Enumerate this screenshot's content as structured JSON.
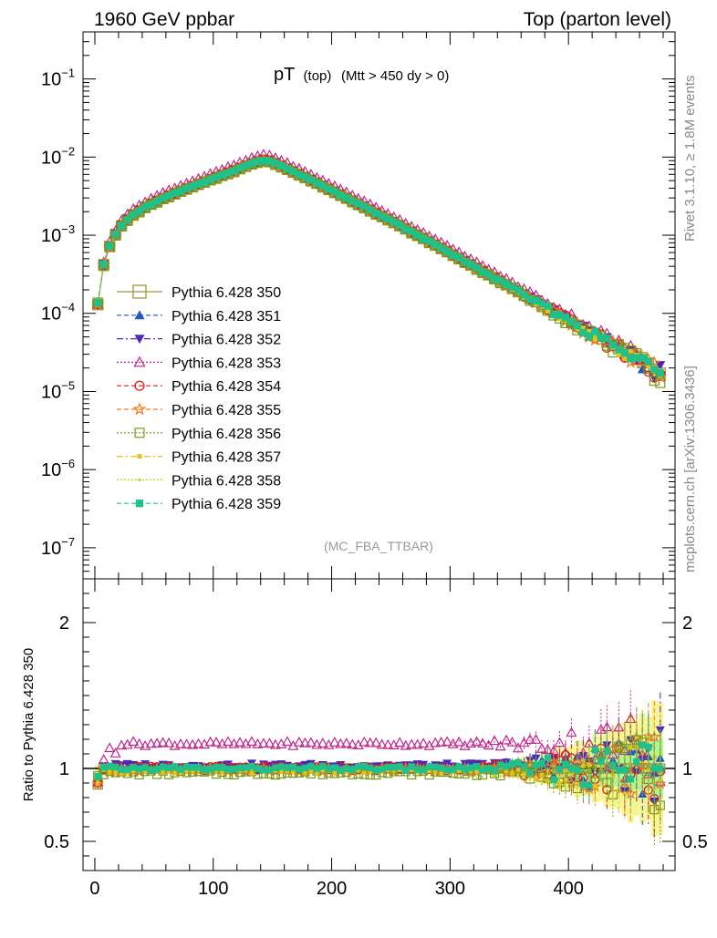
{
  "header": {
    "left": "1960 GeV ppbar",
    "right": "Top (parton level)"
  },
  "plot_title": {
    "main": "pT",
    "sub1": "(top)",
    "sub2": "(Mtt > 450 dy > 0)"
  },
  "watermark": "(MC_FBA_TTBAR)",
  "side_text": {
    "rivet": "Rivet 3.1.10, ≥ 1.8M events",
    "mcplots": "mcplots.cern.ch [arXiv:1306.3436]"
  },
  "ratio_ylabel": "Ratio to Pythia 6.428 350",
  "chart_data": [
    {
      "type": "scatter",
      "yscale": "log",
      "xlim": [
        -10,
        490
      ],
      "ylim": [
        4e-08,
        0.4
      ],
      "y_tick_labels": [
        "10^-7",
        "10^-6",
        "10^-5",
        "10^-4",
        "10^-3",
        "10^-2",
        "10^-1"
      ],
      "legend_position": "center-left",
      "series": [
        {
          "name": "Pythia 6.428 350",
          "color": "#9a9a3a",
          "marker": "open-square",
          "line": "solid",
          "offset": 1.0
        },
        {
          "name": "Pythia 6.428 351",
          "color": "#1f58c0",
          "marker": "filled-triangle-up",
          "line": "dashed",
          "offset": 1.0
        },
        {
          "name": "Pythia 6.428 352",
          "color": "#4a2ab8",
          "marker": "filled-triangle-down",
          "line": "dashdot",
          "offset": 1.02
        },
        {
          "name": "Pythia 6.428 353",
          "color": "#c0288c",
          "marker": "open-triangle-up",
          "line": "dotted",
          "offset": 1.17
        },
        {
          "name": "Pythia 6.428 354",
          "color": "#e01c1c",
          "marker": "open-circle",
          "line": "dashed",
          "offset": 1.0
        },
        {
          "name": "Pythia 6.428 355",
          "color": "#f07a1e",
          "marker": "open-star",
          "line": "dashed",
          "offset": 0.99
        },
        {
          "name": "Pythia 6.428 356",
          "color": "#7a9a10",
          "marker": "open-square-small",
          "line": "dotted",
          "offset": 0.97
        },
        {
          "name": "Pythia 6.428 357",
          "color": "#e6c21a",
          "marker": "filled-small",
          "line": "dashdot",
          "offset": 0.98
        },
        {
          "name": "Pythia 6.428 358",
          "color": "#c8d21a",
          "marker": "dot",
          "line": "dotted",
          "offset": 0.99
        },
        {
          "name": "Pythia 6.428 359",
          "color": "#1fc08a",
          "marker": "filled-square",
          "line": "dashed",
          "offset": 1.0
        }
      ],
      "x": [
        2.5,
        7.5,
        12.5,
        17.5,
        22.5,
        27.5,
        32.5,
        37.5,
        42.5,
        47.5,
        52.5,
        57.5,
        62.5,
        67.5,
        72.5,
        77.5,
        82.5,
        87.5,
        92.5,
        97.5,
        102.5,
        107.5,
        112.5,
        117.5,
        122.5,
        127.5,
        132.5,
        137.5,
        142.5,
        147.5,
        152.5,
        157.5,
        162.5,
        167.5,
        172.5,
        177.5,
        182.5,
        187.5,
        192.5,
        197.5,
        202.5,
        207.5,
        212.5,
        217.5,
        222.5,
        227.5,
        232.5,
        237.5,
        242.5,
        247.5,
        252.5,
        257.5,
        262.5,
        267.5,
        272.5,
        277.5,
        282.5,
        287.5,
        292.5,
        297.5,
        302.5,
        307.5,
        312.5,
        317.5,
        322.5,
        327.5,
        332.5,
        337.5,
        342.5,
        347.5,
        352.5,
        357.5,
        362.5,
        367.5,
        372.5,
        377.5,
        382.5,
        387.5,
        392.5,
        397.5,
        402.5,
        407.5,
        412.5,
        417.5,
        422.5,
        427.5,
        432.5,
        437.5,
        442.5,
        447.5,
        452.5,
        457.5,
        462.5,
        467.5,
        472.5,
        477.5
      ],
      "reference_values": [
        0.000145,
        0.00042,
        0.00072,
        0.00102,
        0.00132,
        0.00158,
        0.00182,
        0.00205,
        0.00227,
        0.0025,
        0.00272,
        0.00295,
        0.00318,
        0.00342,
        0.00367,
        0.00393,
        0.0042,
        0.00449,
        0.0048,
        0.00513,
        0.00548,
        0.00586,
        0.00627,
        0.0067,
        0.00717,
        0.00767,
        0.0082,
        0.00877,
        0.0091,
        0.0089,
        0.0083,
        0.00765,
        0.00705,
        0.0065,
        0.00598,
        0.0055,
        0.00505,
        0.00463,
        0.00425,
        0.0039,
        0.00358,
        0.00328,
        0.003,
        0.00275,
        0.00251,
        0.0023,
        0.0021,
        0.00192,
        0.00175,
        0.0016,
        0.00146,
        0.00133,
        0.00121,
        0.0011,
        0.001,
        0.00091,
        0.00083,
        0.00075,
        0.00068,
        0.00062,
        0.00056,
        0.00051,
        0.00046,
        0.000418,
        0.000379,
        0.000343,
        0.000311,
        0.000282,
        0.000256,
        0.000232,
        0.00021,
        0.00019,
        0.000172,
        0.000156,
        0.000141,
        0.000128,
        0.000116,
        0.000105,
        9.5e-05,
        8.6e-05,
        7.8e-05,
        7.05e-05,
        6.38e-05,
        5.77e-05,
        5.22e-05,
        4.72e-05,
        4.27e-05,
        3.86e-05,
        3.49e-05,
        3.16e-05,
        2.86e-05,
        2.58e-05,
        2.33e-05,
        2.11e-05,
        1.91e-05,
        1.72e-05
      ]
    },
    {
      "type": "scatter",
      "xlabel": "",
      "ylabel": "Ratio to Pythia 6.428 350",
      "xlim": [
        -10,
        490
      ],
      "ylim": [
        0.3,
        2.3
      ],
      "x_ticks": [
        0,
        100,
        200,
        300,
        400
      ],
      "y_ticks": [
        0.5,
        1,
        2
      ],
      "reference_line": 1.0,
      "band": "yellow-green uncertainty band around 1",
      "note": "ratio of each series to Pythia 6.428 350, same x bins as the main panel"
    }
  ]
}
